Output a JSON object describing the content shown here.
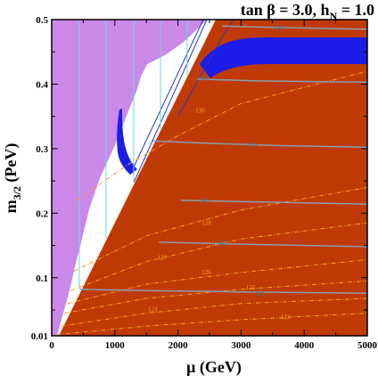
{
  "chart_data": {
    "type": "contour",
    "title": "tan β = 3.0, h_N = 1.0",
    "title_parts": {
      "main": "tan β = 3.0, h",
      "sub": "N",
      "tail": " = 1.0"
    },
    "xlabel": "μ  (GeV)",
    "ylabel_parts": {
      "main": "m",
      "sub": "3/2",
      "tail": " (PeV)"
    },
    "xlim": [
      0,
      5000
    ],
    "ylim": [
      0.01,
      0.5
    ],
    "x_ticks": [
      0,
      1000,
      2000,
      3000,
      4000,
      5000
    ],
    "x_tick_labels": [
      "0",
      "1000",
      "2000",
      "3000",
      "4000",
      "5000"
    ],
    "y_ticks": [
      0.01,
      0.1,
      0.2,
      0.3,
      0.4,
      0.5
    ],
    "y_tick_labels": [
      "0.01",
      "0.1",
      "0.2",
      "0.3",
      "0.4",
      "0.5"
    ],
    "colors": {
      "allowed": "#c03a06",
      "excluded_left": "#cc88e8",
      "dark_matter": "#1c1ce8",
      "mass_contour": "#8a9fb2",
      "higgs_contour": "#f4a020",
      "cyan_lines": "#66d8e8"
    },
    "mass_contours": [
      {
        "label": "500",
        "points": [
          [
            440,
            0.082
          ],
          [
            1500,
            0.08
          ],
          [
            3000,
            0.078
          ],
          [
            5000,
            0.076
          ]
        ],
        "label_at": [
          3300,
          0.074
        ]
      },
      {
        "label": "1000",
        "points": [
          [
            1700,
            0.155
          ],
          [
            3000,
            0.152
          ],
          [
            5000,
            0.148
          ]
        ],
        "label_at": [
          2700,
          0.153
        ]
      },
      {
        "label": "1500",
        "points": [
          [
            2050,
            0.22
          ],
          [
            3500,
            0.217
          ],
          [
            5000,
            0.214
          ]
        ],
        "label_at": [
          2400,
          0.219
        ]
      },
      {
        "label": "2000",
        "points": [
          [
            1600,
            0.312
          ],
          [
            2300,
            0.309
          ],
          [
            3500,
            0.305
          ],
          [
            5000,
            0.302
          ]
        ],
        "label_at": [
          3150,
          0.306
        ]
      },
      {
        "label": "2500",
        "points": [
          [
            2300,
            0.408
          ],
          [
            3200,
            0.405
          ],
          [
            5000,
            0.403
          ]
        ],
        "label_at": [
          2400,
          0.408
        ]
      },
      {
        "label": "3000",
        "points": [
          [
            2700,
            0.49
          ],
          [
            3500,
            0.488
          ],
          [
            5000,
            0.485
          ]
        ],
        "label_at": [
          3600,
          0.487
        ]
      }
    ],
    "higgs_contours": [
      {
        "label": "122",
        "points": [
          [
            80,
            0.012
          ],
          [
            1500,
            0.025
          ],
          [
            3000,
            0.035
          ],
          [
            5000,
            0.045
          ]
        ],
        "label_at": [
          3700,
          0.036
        ]
      },
      {
        "label": "124",
        "points": [
          [
            150,
            0.025
          ],
          [
            1500,
            0.045
          ],
          [
            3000,
            0.06
          ],
          [
            5000,
            0.068
          ]
        ],
        "label_at": [
          1600,
          0.048
        ]
      },
      {
        "label": "125",
        "points": [
          [
            200,
            0.045
          ],
          [
            1500,
            0.068
          ],
          [
            3000,
            0.082
          ],
          [
            5000,
            0.095
          ]
        ],
        "label_at": [
          3150,
          0.082
        ]
      },
      {
        "label": "126",
        "points": [
          [
            250,
            0.06
          ],
          [
            1500,
            0.09
          ],
          [
            3000,
            0.108
          ],
          [
            5000,
            0.128
          ]
        ],
        "label_at": [
          2450,
          0.105
        ]
      },
      {
        "label": "127",
        "points": [
          [
            300,
            0.08
          ],
          [
            1500,
            0.125
          ],
          [
            3000,
            0.16
          ],
          [
            5000,
            0.185
          ]
        ],
        "label_at": [
          1750,
          0.128
        ]
      },
      {
        "label": "128",
        "points": [
          [
            350,
            0.11
          ],
          [
            1500,
            0.165
          ],
          [
            3000,
            0.205
          ],
          [
            5000,
            0.24
          ]
        ],
        "label_at": [
          2450,
          0.182
        ]
      },
      {
        "label": "130",
        "points": [
          [
            400,
            0.22
          ],
          [
            1200,
            0.275
          ],
          [
            2000,
            0.32
          ],
          [
            3000,
            0.37
          ],
          [
            5000,
            0.42
          ]
        ],
        "label_at": [
          2350,
          0.356
        ]
      }
    ]
  }
}
